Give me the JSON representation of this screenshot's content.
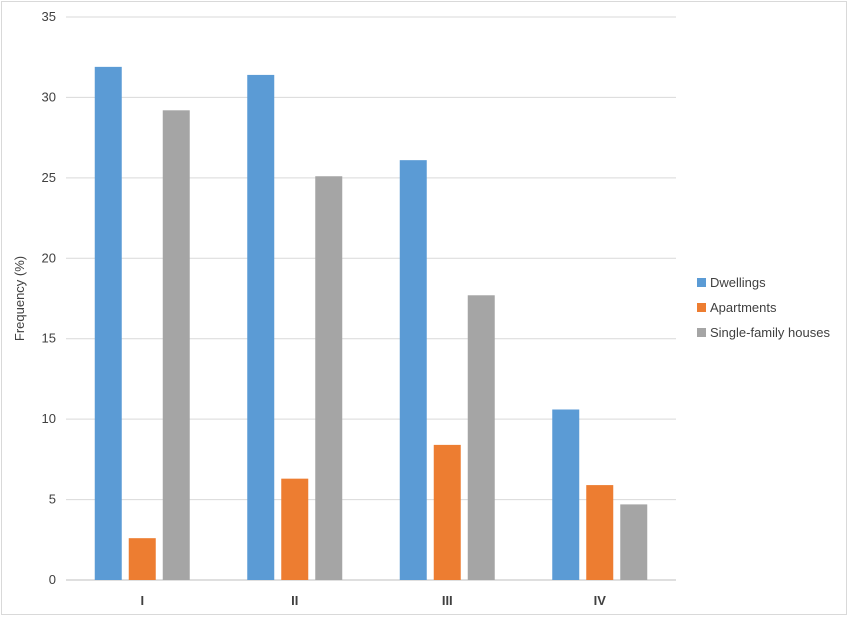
{
  "chart_data": {
    "type": "bar",
    "categories": [
      "I",
      "II",
      "III",
      "IV"
    ],
    "series": [
      {
        "name": "Dwellings",
        "values": [
          31.9,
          31.4,
          26.1,
          10.6
        ],
        "color": "#5b9bd5"
      },
      {
        "name": "Apartments",
        "values": [
          2.6,
          6.3,
          8.4,
          5.9
        ],
        "color": "#ed7d31"
      },
      {
        "name": "Single-family houses",
        "values": [
          29.2,
          25.1,
          17.7,
          4.7
        ],
        "color": "#a5a5a5"
      }
    ],
    "xlabel": "",
    "ylabel": "Frequency (%)",
    "ylim": [
      0,
      35
    ],
    "yticks": [
      0,
      5,
      10,
      15,
      20,
      25,
      30,
      35
    ],
    "grid": true,
    "legend_position": "right"
  }
}
